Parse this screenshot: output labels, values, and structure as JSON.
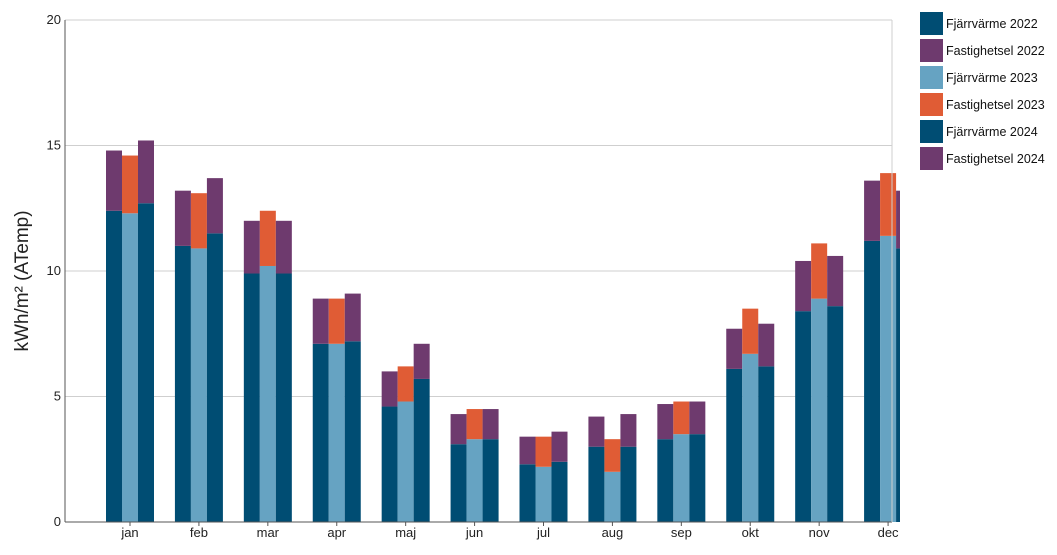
{
  "chart_data": {
    "type": "bar",
    "stacked": true,
    "grouped": true,
    "ylabel": "kWh/m² (ATemp)",
    "ylim": [
      0,
      20
    ],
    "yticks": [
      0,
      5,
      10,
      15,
      20
    ],
    "grid": true,
    "legend_position": "right",
    "categories": [
      "jan",
      "feb",
      "mar",
      "apr",
      "maj",
      "jun",
      "jul",
      "aug",
      "sep",
      "okt",
      "nov",
      "dec"
    ],
    "groups": [
      {
        "year": "2022",
        "series": [
          {
            "name": "Fjärrvärme 2022",
            "color": "#004d73",
            "values": [
              12.4,
              11.0,
              9.9,
              7.1,
              4.6,
              3.1,
              2.3,
              3.0,
              3.3,
              6.1,
              8.4,
              11.2
            ]
          },
          {
            "name": "Fastighetsel 2022",
            "color": "#6e3a6e",
            "values": [
              2.4,
              2.2,
              2.1,
              1.8,
              1.4,
              1.2,
              1.1,
              1.2,
              1.4,
              1.6,
              2.0,
              2.4
            ]
          }
        ]
      },
      {
        "year": "2023",
        "series": [
          {
            "name": "Fjärrvärme 2023",
            "color": "#66a3c2",
            "values": [
              12.3,
              10.9,
              10.2,
              7.1,
              4.8,
              3.3,
              2.2,
              2.0,
              3.5,
              6.7,
              8.9,
              11.4
            ]
          },
          {
            "name": "Fastighetsel 2023",
            "color": "#e05c35",
            "values": [
              2.3,
              2.2,
              2.2,
              1.8,
              1.4,
              1.2,
              1.2,
              1.3,
              1.3,
              1.8,
              2.2,
              2.5
            ]
          }
        ]
      },
      {
        "year": "2024",
        "series": [
          {
            "name": "Fjärrvärme 2024",
            "color": "#004d73",
            "values": [
              12.7,
              11.5,
              9.9,
              7.2,
              5.7,
              3.3,
              2.4,
              3.0,
              3.5,
              6.2,
              8.6,
              10.9
            ]
          },
          {
            "name": "Fastighetsel 2024",
            "color": "#6e3a6e",
            "values": [
              2.5,
              2.2,
              2.1,
              1.9,
              1.4,
              1.2,
              1.2,
              1.3,
              1.3,
              1.7,
              2.0,
              2.3
            ]
          }
        ]
      }
    ]
  }
}
